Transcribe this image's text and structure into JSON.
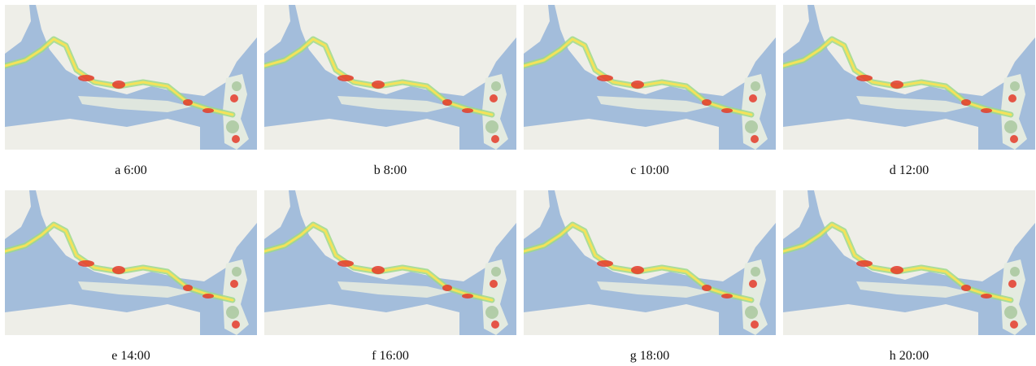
{
  "panels": [
    {
      "caption": "a 6:00"
    },
    {
      "caption": "b 8:00"
    },
    {
      "caption": "c 10:00"
    },
    {
      "caption": "d 12:00"
    },
    {
      "caption": "e 14:00"
    },
    {
      "caption": "f 16:00"
    },
    {
      "caption": "g 18:00"
    },
    {
      "caption": "h 20:00"
    }
  ]
}
